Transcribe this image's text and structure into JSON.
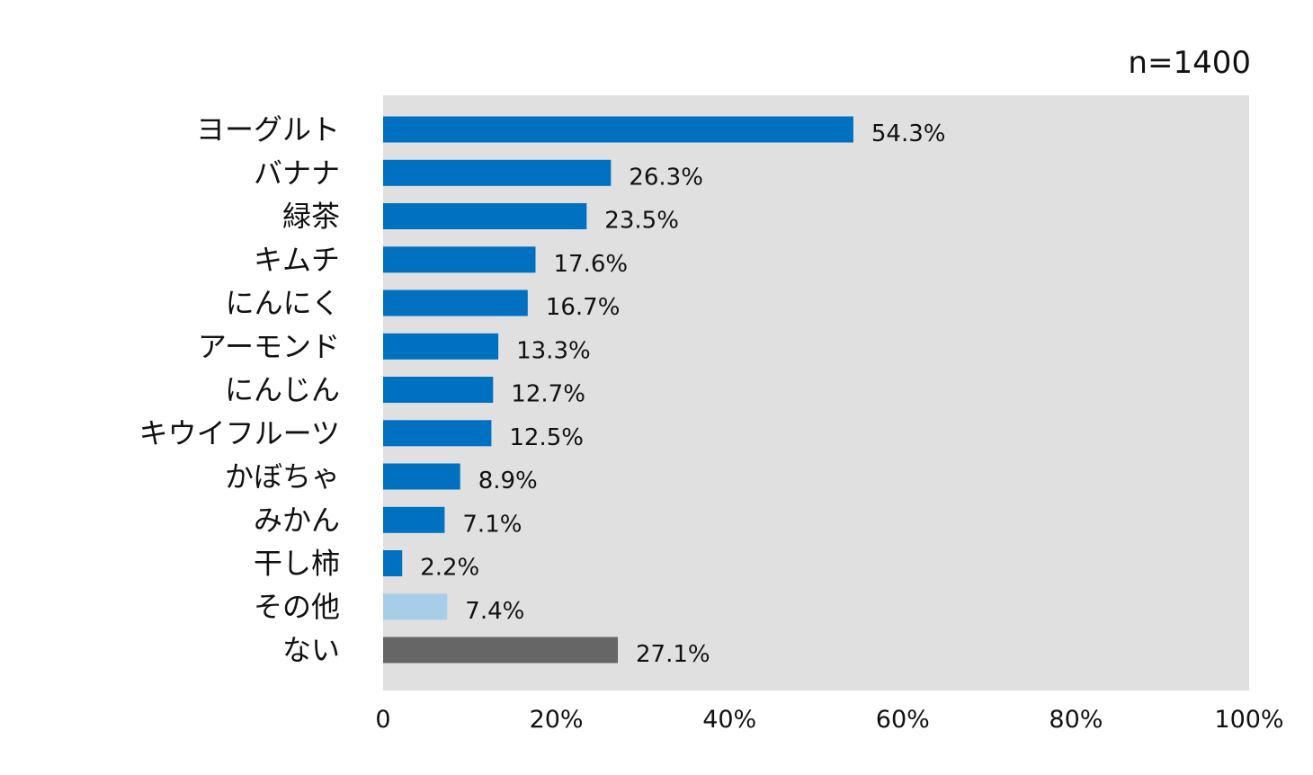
{
  "chart_data": {
    "type": "bar",
    "orientation": "horizontal",
    "sample_note": "n=1400",
    "categories": [
      "ヨーグルト",
      "バナナ",
      "緑茶",
      "キムチ",
      "にんにく",
      "アーモンド",
      "にんじん",
      "キウイフルーツ",
      "かぼちゃ",
      "みかん",
      "干し柿",
      "その他",
      "ない"
    ],
    "values": [
      54.3,
      26.3,
      23.5,
      17.6,
      16.7,
      13.3,
      12.7,
      12.5,
      8.9,
      7.1,
      2.2,
      7.4,
      27.1
    ],
    "value_labels": [
      "54.3%",
      "26.3%",
      "23.5%",
      "17.6%",
      "16.7%",
      "13.3%",
      "12.7%",
      "12.5%",
      "8.9%",
      "7.1%",
      "2.2%",
      "7.4%",
      "27.1%"
    ],
    "bar_colors": [
      "#0070c0",
      "#0070c0",
      "#0070c0",
      "#0070c0",
      "#0070c0",
      "#0070c0",
      "#0070c0",
      "#0070c0",
      "#0070c0",
      "#0070c0",
      "#0070c0",
      "#a8cde6",
      "#666666"
    ],
    "xlim": [
      0,
      100
    ],
    "x_ticks": [
      0,
      20,
      40,
      60,
      80,
      100
    ],
    "x_tick_labels": [
      "0",
      "20%",
      "40%",
      "60%",
      "80%",
      "100%"
    ],
    "plot_background": "#e0e0e0",
    "grid": false
  }
}
